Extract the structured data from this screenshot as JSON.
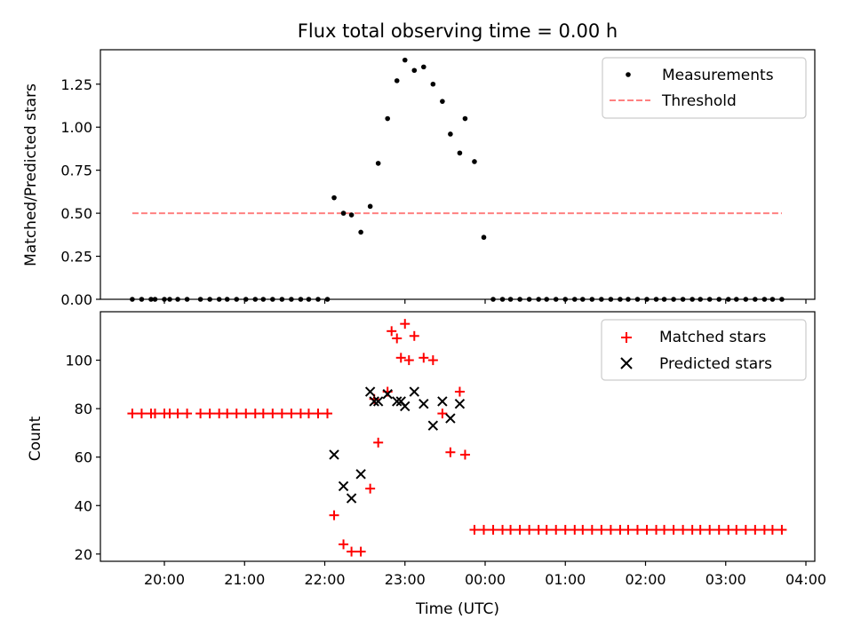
{
  "chart_data": [
    {
      "type": "scatter",
      "title": "Flux total observing time = 0.00 h",
      "xlabel": "",
      "ylabel": "Matched/Predicted stars",
      "ylim": [
        0,
        1.45
      ],
      "y_ticks": [
        "0.00",
        "0.25",
        "0.50",
        "0.75",
        "1.00",
        "1.25"
      ],
      "legend_position": "top-right",
      "series": [
        {
          "name": "Measurements",
          "marker": "dot",
          "color": "#000000",
          "x": [
            "19:36",
            "19:43",
            "19:50",
            "19:53",
            "20:00",
            "20:04",
            "20:10",
            "20:17",
            "20:27",
            "20:34",
            "20:41",
            "20:47",
            "20:54",
            "21:01",
            "21:08",
            "21:14",
            "21:21",
            "21:28",
            "21:35",
            "21:42",
            "21:48",
            "21:55",
            "22:02",
            "22:07",
            "22:14",
            "22:20",
            "22:27",
            "22:34",
            "22:40",
            "22:47",
            "22:54",
            "23:00",
            "23:07",
            "23:14",
            "23:21",
            "23:28",
            "23:34",
            "23:41",
            "23:45",
            "23:52",
            "23:59",
            "00:06",
            "00:13",
            "00:19",
            "00:26",
            "00:33",
            "00:40",
            "00:46",
            "00:53",
            "01:00",
            "01:07",
            "01:13",
            "01:20",
            "01:27",
            "01:34",
            "01:41",
            "01:47",
            "01:54",
            "02:01",
            "02:08",
            "02:14",
            "02:21",
            "02:28",
            "02:35",
            "02:41",
            "02:48",
            "02:55",
            "03:02",
            "03:08",
            "03:15",
            "03:22",
            "03:29",
            "03:35",
            "03:42"
          ],
          "y": [
            0,
            0,
            0,
            0,
            0,
            0,
            0,
            0,
            0,
            0,
            0,
            0,
            0,
            0,
            0,
            0,
            0,
            0,
            0,
            0,
            0,
            0,
            0,
            0.59,
            0.5,
            0.49,
            0.39,
            0.54,
            0.79,
            1.05,
            1.27,
            1.39,
            1.33,
            1.35,
            1.25,
            1.15,
            0.96,
            0.85,
            1.05,
            0.8,
            0.36,
            0,
            0,
            0,
            0,
            0,
            0,
            0,
            0,
            0,
            0,
            0,
            0,
            0,
            0,
            0,
            0,
            0,
            0,
            0,
            0,
            0,
            0,
            0,
            0,
            0,
            0,
            0,
            0,
            0,
            0,
            0,
            0,
            0
          ]
        },
        {
          "name": "Threshold",
          "type": "line",
          "style": "dashed",
          "color": "#ff8080",
          "x": [
            "19:36",
            "03:42"
          ],
          "y": [
            0.5,
            0.5
          ]
        }
      ]
    },
    {
      "type": "scatter",
      "title": "",
      "xlabel": "Time (UTC)",
      "ylabel": "Count",
      "ylim": [
        17,
        120
      ],
      "y_ticks": [
        "20",
        "40",
        "60",
        "80",
        "100"
      ],
      "x_ticks": [
        "20:00",
        "21:00",
        "22:00",
        "23:00",
        "00:00",
        "01:00",
        "02:00",
        "03:00",
        "04:00"
      ],
      "legend_position": "top-right",
      "series": [
        {
          "name": "Matched stars",
          "marker": "plus",
          "color": "#ff0000",
          "x": [
            "19:36",
            "19:43",
            "19:50",
            "19:53",
            "20:00",
            "20:04",
            "20:10",
            "20:17",
            "20:27",
            "20:34",
            "20:41",
            "20:47",
            "20:54",
            "21:01",
            "21:08",
            "21:14",
            "21:21",
            "21:28",
            "21:35",
            "21:42",
            "21:48",
            "21:55",
            "22:02",
            "22:07",
            "22:14",
            "22:20",
            "22:27",
            "22:34",
            "22:40",
            "22:47",
            "22:54",
            "23:00",
            "23:07",
            "23:14",
            "23:21",
            "23:28",
            "23:34",
            "23:41",
            "23:45",
            "23:52",
            "23:59",
            "00:06",
            "00:13",
            "00:19",
            "00:26",
            "00:33",
            "00:40",
            "00:46",
            "00:53",
            "01:00",
            "01:07",
            "01:13",
            "01:20",
            "01:27",
            "01:34",
            "01:41",
            "01:47",
            "01:54",
            "02:01",
            "02:08",
            "02:14",
            "02:21",
            "02:28",
            "02:35",
            "02:41",
            "02:48",
            "02:55",
            "03:02",
            "03:08",
            "03:15",
            "03:22",
            "03:29",
            "03:35",
            "03:42",
            "22:50",
            "22:57",
            "23:03",
            "22:37"
          ],
          "y": [
            78,
            78,
            78,
            78,
            78,
            78,
            78,
            78,
            78,
            78,
            78,
            78,
            78,
            78,
            78,
            78,
            78,
            78,
            78,
            78,
            78,
            78,
            78,
            36,
            24,
            21,
            21,
            47,
            66,
            87,
            109,
            115,
            110,
            101,
            100,
            78,
            62,
            87,
            61,
            30,
            30,
            30,
            30,
            30,
            30,
            30,
            30,
            30,
            30,
            30,
            30,
            30,
            30,
            30,
            30,
            30,
            30,
            30,
            30,
            30,
            30,
            30,
            30,
            30,
            30,
            30,
            30,
            30,
            30,
            30,
            30,
            30,
            30,
            30,
            112,
            101,
            100,
            84
          ]
        },
        {
          "name": "Predicted stars",
          "marker": "x",
          "color": "#000000",
          "x": [
            "22:07",
            "22:14",
            "22:20",
            "22:27",
            "22:34",
            "22:37",
            "22:40",
            "22:47",
            "22:54",
            "22:57",
            "23:00",
            "23:07",
            "23:14",
            "23:21",
            "23:28",
            "23:34",
            "23:41"
          ],
          "y": [
            61,
            48,
            43,
            53,
            87,
            83,
            83,
            86,
            83,
            83,
            81,
            87,
            82,
            73,
            83,
            76,
            82
          ]
        }
      ]
    }
  ]
}
